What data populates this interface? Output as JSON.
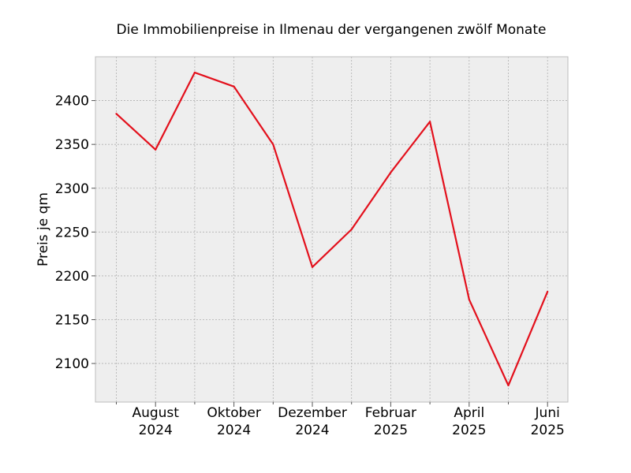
{
  "chart_data": {
    "type": "line",
    "title": "Die Immobilienpreise in Ilmenau der vergangenen zwölf Monate",
    "xlabel": "",
    "ylabel": "Preis je qm",
    "x": [
      "2024-07",
      "2024-08",
      "2024-09",
      "2024-10",
      "2024-11",
      "2024-12",
      "2025-01",
      "2025-02",
      "2025-03",
      "2025-04",
      "2025-05",
      "2025-06"
    ],
    "x_tick_labels": [
      {
        "x": "2024-08",
        "line1": "August",
        "line2": "2024"
      },
      {
        "x": "2024-10",
        "line1": "Oktober",
        "line2": "2024"
      },
      {
        "x": "2024-12",
        "line1": "Dezember",
        "line2": "2024"
      },
      {
        "x": "2025-02",
        "line1": "Februar",
        "line2": "2025"
      },
      {
        "x": "2025-04",
        "line1": "April",
        "line2": "2025"
      },
      {
        "x": "2025-06",
        "line1": "Juni",
        "line2": "2025"
      }
    ],
    "series": [
      {
        "values": [
          2385,
          2344,
          2432,
          2416,
          2350,
          2210,
          2253,
          2318,
          2376,
          2173,
          2075,
          2182
        ],
        "color": "#e3101c"
      }
    ],
    "ylim": [
      2056,
      2450
    ],
    "y_ticks": [
      2100,
      2150,
      2200,
      2250,
      2300,
      2350,
      2400
    ],
    "grid": true,
    "legend": "none",
    "background_color": "#eeeeee",
    "grid_color": "#b0b0b0"
  }
}
